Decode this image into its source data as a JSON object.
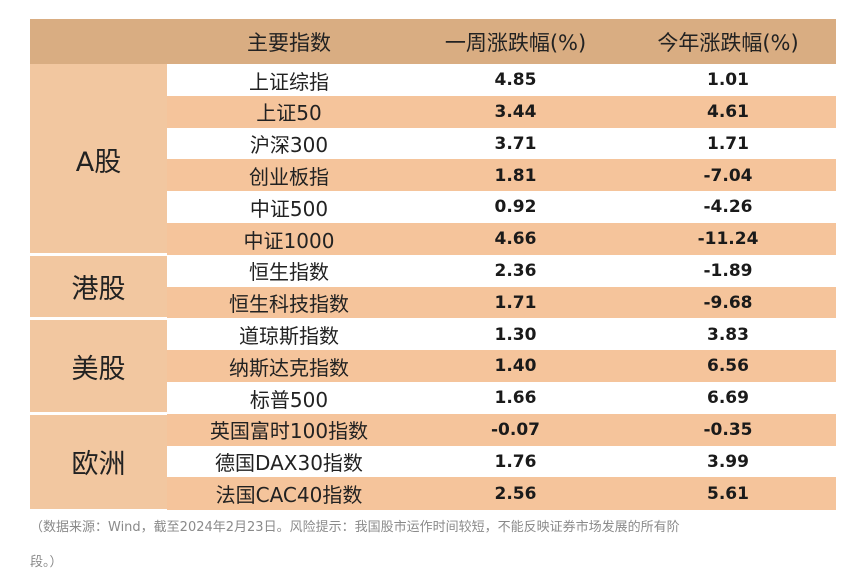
{
  "header": {
    "name": "主要指数",
    "weekly": "一周涨跌幅(%)",
    "ytd": "今年涨跌幅(%)"
  },
  "groups": [
    {
      "label": "A股",
      "rows": [
        {
          "name": "上证综指",
          "weekly": "4.85",
          "ytd": "1.01"
        },
        {
          "name": "上证50",
          "weekly": "3.44",
          "ytd": "4.61"
        },
        {
          "name": "沪深300",
          "weekly": "3.71",
          "ytd": "1.71"
        },
        {
          "name": "创业板指",
          "weekly": "1.81",
          "ytd": "-7.04"
        },
        {
          "name": "中证500",
          "weekly": "0.92",
          "ytd": "-4.26"
        },
        {
          "name": "中证1000",
          "weekly": "4.66",
          "ytd": "-11.24"
        }
      ]
    },
    {
      "label": "港股",
      "rows": [
        {
          "name": "恒生指数",
          "weekly": "2.36",
          "ytd": "-1.89"
        },
        {
          "name": "恒生科技指数",
          "weekly": "1.71",
          "ytd": "-9.68"
        }
      ]
    },
    {
      "label": "美股",
      "rows": [
        {
          "name": "道琼斯指数",
          "weekly": "1.30",
          "ytd": "3.83"
        },
        {
          "name": "纳斯达克指数",
          "weekly": "1.40",
          "ytd": "6.56"
        },
        {
          "name": "标普500",
          "weekly": "1.66",
          "ytd": "6.69"
        }
      ]
    },
    {
      "label": "欧洲",
      "rows": [
        {
          "name": "英国富时100指数",
          "weekly": "-0.07",
          "ytd": "-0.35"
        },
        {
          "name": "德国DAX30指数",
          "weekly": "1.76",
          "ytd": "3.99"
        },
        {
          "name": "法国CAC40指数",
          "weekly": "2.56",
          "ytd": "5.61"
        }
      ]
    }
  ],
  "footnote": {
    "line1": "（数据来源：Wind，截至2024年2月23日。风险提示：我国股市运作时间较短，不能反映证券市场发展的所有阶",
    "line2": "段。）"
  },
  "colors": {
    "header_bg": "#d9ad82",
    "group_bg": "#f2c7a0",
    "row_light": "#ffffff",
    "row_peach": "#f5c49b"
  }
}
